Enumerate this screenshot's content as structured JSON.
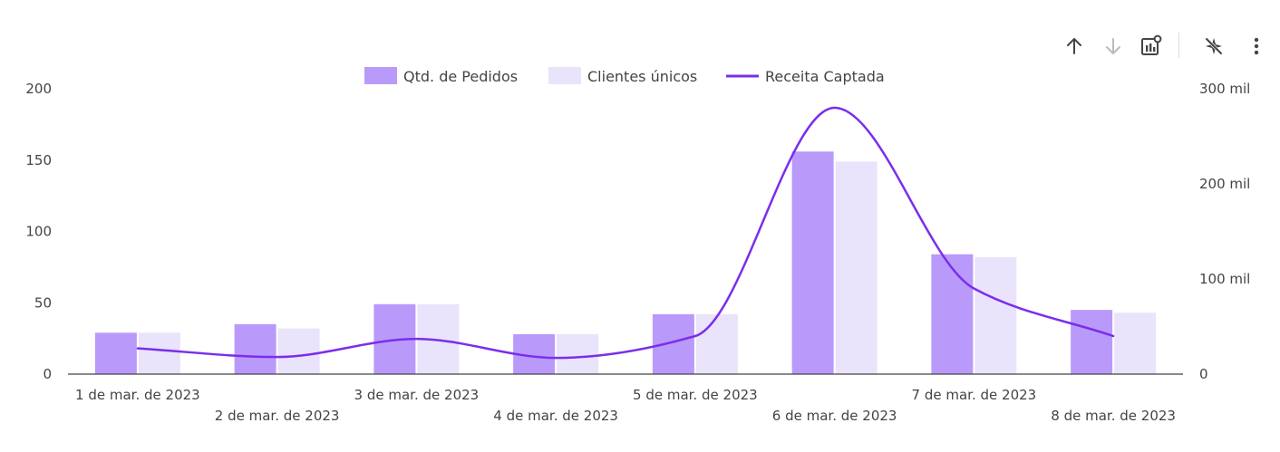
{
  "toolbar": {
    "icons": [
      "arrow-up-icon",
      "arrow-down-icon",
      "chart-settings-icon",
      "disable-interactions-icon",
      "more-vert-icon"
    ]
  },
  "colors": {
    "pedidos": "#B99AFB",
    "clientes": "#EAE3FC",
    "receita": "#7B2EEA",
    "axis": "#444444",
    "icon": "#444444",
    "icon_disabled": "#BBBBBB"
  },
  "chart_data": {
    "type": "bar",
    "categories": [
      "1 de mar. de 2023",
      "2 de mar. de 2023",
      "3 de mar. de 2023",
      "4 de mar. de 2023",
      "5 de mar. de 2023",
      "6 de mar. de 2023",
      "7 de mar. de 2023",
      "8 de mar. de 2023"
    ],
    "series": [
      {
        "name": "Qtd. de Pedidos",
        "type": "bar",
        "axis": "left",
        "values": [
          29,
          35,
          49,
          28,
          42,
          156,
          84,
          45
        ]
      },
      {
        "name": "Clientes únicos",
        "type": "bar",
        "axis": "left",
        "values": [
          29,
          32,
          49,
          28,
          42,
          149,
          82,
          43
        ]
      },
      {
        "name": "Receita Captada",
        "type": "line",
        "axis": "right",
        "smooth": true,
        "values": [
          27000,
          18000,
          37000,
          17000,
          40000,
          280000,
          90000,
          40000
        ]
      }
    ],
    "y_left": {
      "ylim": [
        0,
        200
      ],
      "ticks": [
        "0",
        "50",
        "100",
        "150",
        "200"
      ]
    },
    "y_right": {
      "ylim": [
        0,
        300000
      ],
      "ticks": [
        "0",
        "100 mil",
        "200 mil",
        "300 mil"
      ]
    },
    "legend": "top",
    "grid": false
  }
}
